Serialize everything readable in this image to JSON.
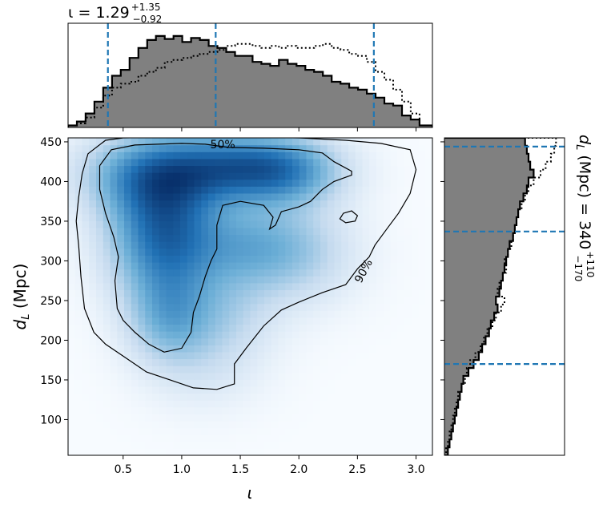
{
  "chart_data": {
    "type": "corner-plot",
    "top_panel": {
      "type": "histogram",
      "title_param": "ι",
      "title_value": "1.29",
      "title_plus": "+1.35",
      "title_minus": "−0.92",
      "xlim": [
        0.03,
        3.14
      ],
      "bins_x": [
        0.03,
        0.105,
        0.18,
        0.255,
        0.33,
        0.405,
        0.48,
        0.555,
        0.63,
        0.705,
        0.78,
        0.855,
        0.93,
        1.005,
        1.08,
        1.155,
        1.23,
        1.305,
        1.38,
        1.455,
        1.53,
        1.605,
        1.68,
        1.755,
        1.83,
        1.905,
        1.98,
        2.055,
        2.13,
        2.205,
        2.28,
        2.355,
        2.43,
        2.505,
        2.58,
        2.655,
        2.73,
        2.805,
        2.88,
        2.955,
        3.03,
        3.14
      ],
      "filled_values": [
        2,
        6,
        14,
        26,
        40,
        52,
        58,
        70,
        80,
        88,
        92,
        89,
        92,
        86,
        90,
        88,
        82,
        80,
        76,
        72,
        72,
        66,
        64,
        62,
        68,
        64,
        62,
        58,
        56,
        52,
        46,
        44,
        40,
        38,
        34,
        30,
        24,
        22,
        12,
        8,
        2
      ],
      "dotted_values": [
        2,
        4,
        10,
        20,
        32,
        40,
        44,
        46,
        52,
        56,
        60,
        66,
        68,
        70,
        72,
        74,
        76,
        78,
        82,
        84,
        84,
        82,
        80,
        82,
        80,
        82,
        80,
        80,
        82,
        84,
        80,
        78,
        74,
        72,
        66,
        56,
        48,
        38,
        26,
        14,
        2
      ],
      "ylim": [
        0,
        100
      ],
      "quantile_lines": [
        0.37,
        1.29,
        2.64
      ]
    },
    "main_panel": {
      "type": "density-2d",
      "xlabel": "ι",
      "ylabel": "d_L (Mpc)",
      "xlim": [
        0.03,
        3.14
      ],
      "ylim": [
        55,
        455
      ],
      "xticks": [
        0.5,
        1.0,
        1.5,
        2.0,
        2.5,
        3.0
      ],
      "xtick_labels": [
        "0.5",
        "1.0",
        "1.5",
        "2.0",
        "2.5",
        "3.0"
      ],
      "yticks": [
        100,
        150,
        200,
        250,
        300,
        350,
        400,
        450
      ],
      "ytick_labels": [
        "100",
        "150",
        "200",
        "250",
        "300",
        "350",
        "400",
        "450"
      ],
      "density_peaks": [
        {
          "x": 0.85,
          "y": 335,
          "weight": 1.0,
          "sx": 0.32,
          "sy": 55
        },
        {
          "x": 0.75,
          "y": 410,
          "weight": 0.75,
          "sx": 0.4,
          "sy": 35
        },
        {
          "x": 1.85,
          "y": 415,
          "weight": 0.85,
          "sx": 0.35,
          "sy": 30
        },
        {
          "x": 1.35,
          "y": 420,
          "weight": 0.6,
          "sx": 0.35,
          "sy": 30
        },
        {
          "x": 1.55,
          "y": 320,
          "weight": 0.45,
          "sx": 0.35,
          "sy": 35
        },
        {
          "x": 2.0,
          "y": 310,
          "weight": 0.3,
          "sx": 0.35,
          "sy": 45
        },
        {
          "x": 0.9,
          "y": 230,
          "weight": 0.5,
          "sx": 0.25,
          "sy": 40
        },
        {
          "x": 1.4,
          "y": 240,
          "weight": 0.25,
          "sx": 0.3,
          "sy": 40
        },
        {
          "x": 1.2,
          "y": 170,
          "weight": 0.15,
          "sx": 0.35,
          "sy": 40
        }
      ],
      "contour_labels": [
        "50%",
        "90%"
      ],
      "contour_50": [
        [
          0.3,
          420
        ],
        [
          0.4,
          440
        ],
        [
          0.6,
          446
        ],
        [
          1.0,
          448
        ],
        [
          1.2,
          447
        ],
        [
          1.4,
          443
        ],
        [
          1.7,
          442
        ],
        [
          2.0,
          440
        ],
        [
          2.2,
          436
        ],
        [
          2.3,
          425
        ],
        [
          2.45,
          413
        ],
        [
          2.45,
          408
        ],
        [
          2.3,
          400
        ],
        [
          2.2,
          390
        ],
        [
          2.1,
          375
        ],
        [
          2.0,
          368
        ],
        [
          1.85,
          362
        ],
        [
          1.8,
          345
        ],
        [
          1.75,
          340
        ],
        [
          1.78,
          355
        ],
        [
          1.7,
          370
        ],
        [
          1.5,
          375
        ],
        [
          1.35,
          370
        ],
        [
          1.3,
          345
        ],
        [
          1.3,
          315
        ],
        [
          1.25,
          300
        ],
        [
          1.2,
          280
        ],
        [
          1.15,
          255
        ],
        [
          1.1,
          235
        ],
        [
          1.08,
          210
        ],
        [
          1.0,
          190
        ],
        [
          0.85,
          185
        ],
        [
          0.72,
          195
        ],
        [
          0.6,
          210
        ],
        [
          0.5,
          225
        ],
        [
          0.45,
          240
        ],
        [
          0.43,
          275
        ],
        [
          0.46,
          305
        ],
        [
          0.42,
          330
        ],
        [
          0.35,
          360
        ],
        [
          0.3,
          390
        ],
        [
          0.3,
          420
        ]
      ],
      "contour_90": [
        [
          0.12,
          380
        ],
        [
          0.15,
          410
        ],
        [
          0.2,
          435
        ],
        [
          0.35,
          452
        ],
        [
          0.5,
          455
        ],
        [
          1.0,
          456
        ],
        [
          1.5,
          456
        ],
        [
          2.0,
          455
        ],
        [
          2.4,
          452
        ],
        [
          2.7,
          448
        ],
        [
          2.95,
          440
        ],
        [
          3.0,
          415
        ],
        [
          2.95,
          385
        ],
        [
          2.85,
          360
        ],
        [
          2.75,
          340
        ],
        [
          2.65,
          320
        ],
        [
          2.6,
          305
        ],
        [
          2.5,
          290
        ],
        [
          2.4,
          270
        ],
        [
          2.2,
          260
        ],
        [
          2.0,
          248
        ],
        [
          1.85,
          238
        ],
        [
          1.7,
          218
        ],
        [
          1.55,
          190
        ],
        [
          1.45,
          170
        ],
        [
          1.45,
          145
        ],
        [
          1.3,
          138
        ],
        [
          1.1,
          140
        ],
        [
          0.9,
          150
        ],
        [
          0.7,
          160
        ],
        [
          0.5,
          180
        ],
        [
          0.35,
          195
        ],
        [
          0.25,
          210
        ],
        [
          0.17,
          240
        ],
        [
          0.14,
          280
        ],
        [
          0.12,
          320
        ],
        [
          0.1,
          350
        ],
        [
          0.12,
          380
        ]
      ],
      "contour_island": [
        [
          2.38,
          360
        ],
        [
          2.45,
          363
        ],
        [
          2.5,
          357
        ],
        [
          2.48,
          350
        ],
        [
          2.4,
          348
        ],
        [
          2.35,
          353
        ],
        [
          2.38,
          360
        ]
      ]
    },
    "right_panel": {
      "type": "histogram",
      "orientation": "horizontal",
      "title_param": "d_L (Mpc)",
      "title_value": "340",
      "title_plus": "+110",
      "title_minus": "−170",
      "ylim": [
        55,
        455
      ],
      "bins_y": [
        55,
        65,
        75,
        85,
        95,
        105,
        115,
        125,
        135,
        145,
        155,
        165,
        175,
        185,
        195,
        205,
        215,
        225,
        235,
        245,
        255,
        265,
        275,
        285,
        295,
        305,
        315,
        325,
        335,
        345,
        355,
        365,
        375,
        385,
        395,
        405,
        415,
        425,
        435,
        445,
        455
      ],
      "filled_values": [
        4,
        6,
        8,
        10,
        12,
        14,
        16,
        18,
        20,
        22,
        28,
        34,
        40,
        44,
        48,
        52,
        54,
        58,
        62,
        60,
        64,
        66,
        68,
        70,
        72,
        74,
        76,
        80,
        82,
        84,
        86,
        88,
        92,
        96,
        98,
        104,
        100,
        98,
        96,
        94
      ],
      "dotted_values": [
        2,
        4,
        6,
        8,
        10,
        12,
        14,
        16,
        20,
        24,
        26,
        30,
        36,
        42,
        46,
        50,
        56,
        60,
        66,
        70,
        62,
        64,
        68,
        72,
        70,
        74,
        78,
        80,
        82,
        84,
        86,
        90,
        94,
        98,
        104,
        112,
        118,
        124,
        128,
        130
      ],
      "xlim": [
        0,
        140
      ],
      "quantile_lines": [
        170,
        337,
        444
      ]
    },
    "colors": {
      "fill": "#808080",
      "quantile": "#1f77b4",
      "cmap_low": "#f7fbff",
      "cmap_high": "#08306b"
    }
  }
}
